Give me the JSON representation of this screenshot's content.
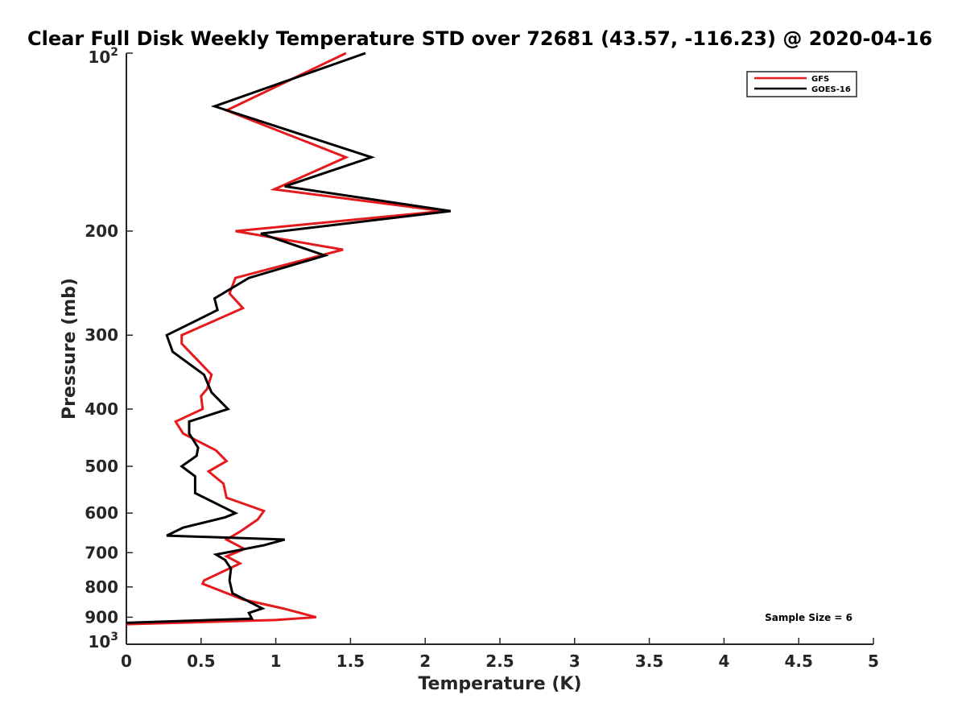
{
  "chart_data": {
    "type": "line",
    "title": "Clear Full Disk Weekly Temperature STD over 72681 (43.57, -116.23) @ 2020-04-16",
    "xlabel": "Temperature (K)",
    "ylabel": "Pressure (mb)",
    "xlim": [
      0,
      5
    ],
    "ylim": [
      100,
      1000
    ],
    "y_scale": "log",
    "y_reversed": true,
    "x_ticks": [
      0,
      0.5,
      1,
      1.5,
      2,
      2.5,
      3,
      3.5,
      4,
      4.5,
      5
    ],
    "x_tick_labels": [
      "0",
      "0.5",
      "1",
      "1.5",
      "2",
      "2.5",
      "3",
      "3.5",
      "4",
      "4.5",
      "5"
    ],
    "y_ticks": [
      100,
      200,
      300,
      400,
      500,
      600,
      700,
      800,
      900,
      1000
    ],
    "y_tick_labels": [
      {
        "base": "10",
        "exp": "2"
      },
      {
        "base": "200",
        "exp": ""
      },
      {
        "base": "300",
        "exp": ""
      },
      {
        "base": "400",
        "exp": ""
      },
      {
        "base": "500",
        "exp": ""
      },
      {
        "base": "600",
        "exp": ""
      },
      {
        "base": "700",
        "exp": ""
      },
      {
        "base": "800",
        "exp": ""
      },
      {
        "base": "900",
        "exp": ""
      },
      {
        "base": "10",
        "exp": "3"
      }
    ],
    "grid": false,
    "legend_position": "top-right",
    "series": [
      {
        "name": "GFS",
        "color": "#e41a1c",
        "points": [
          [
            1.47,
            100
          ],
          [
            0.67,
            125
          ],
          [
            1.47,
            150
          ],
          [
            0.99,
            170
          ],
          [
            2.12,
            185
          ],
          [
            0.73,
            200
          ],
          [
            1.45,
            215
          ],
          [
            0.73,
            240
          ],
          [
            0.69,
            255
          ],
          [
            0.78,
            270
          ],
          [
            0.37,
            300
          ],
          [
            0.37,
            310
          ],
          [
            0.57,
            350
          ],
          [
            0.54,
            370
          ],
          [
            0.5,
            380
          ],
          [
            0.51,
            400
          ],
          [
            0.33,
            420
          ],
          [
            0.38,
            440
          ],
          [
            0.6,
            470
          ],
          [
            0.67,
            490
          ],
          [
            0.55,
            510
          ],
          [
            0.65,
            535
          ],
          [
            0.67,
            565
          ],
          [
            0.92,
            595
          ],
          [
            0.88,
            615
          ],
          [
            0.76,
            645
          ],
          [
            0.67,
            665
          ],
          [
            0.79,
            690
          ],
          [
            0.67,
            710
          ],
          [
            0.76,
            730
          ],
          [
            0.52,
            780
          ],
          [
            0.51,
            790
          ],
          [
            0.78,
            840
          ],
          [
            1.05,
            870
          ],
          [
            1.27,
            900
          ],
          [
            1.0,
            910
          ],
          [
            0.0,
            925
          ]
        ]
      },
      {
        "name": "GOES-16",
        "color": "#000000",
        "points": [
          [
            1.6,
            100
          ],
          [
            0.59,
            123
          ],
          [
            1.64,
            150
          ],
          [
            1.06,
            168
          ],
          [
            2.17,
            185
          ],
          [
            0.9,
            202
          ],
          [
            1.33,
            220
          ],
          [
            0.82,
            240
          ],
          [
            0.59,
            260
          ],
          [
            0.61,
            272
          ],
          [
            0.27,
            300
          ],
          [
            0.31,
            320
          ],
          [
            0.52,
            350
          ],
          [
            0.57,
            375
          ],
          [
            0.68,
            400
          ],
          [
            0.42,
            420
          ],
          [
            0.42,
            440
          ],
          [
            0.48,
            465
          ],
          [
            0.47,
            480
          ],
          [
            0.37,
            500
          ],
          [
            0.46,
            520
          ],
          [
            0.46,
            555
          ],
          [
            0.73,
            600
          ],
          [
            0.66,
            610
          ],
          [
            0.38,
            635
          ],
          [
            0.27,
            655
          ],
          [
            1.06,
            665
          ],
          [
            0.92,
            680
          ],
          [
            0.6,
            705
          ],
          [
            0.66,
            720
          ],
          [
            0.7,
            745
          ],
          [
            0.69,
            780
          ],
          [
            0.71,
            820
          ],
          [
            0.91,
            870
          ],
          [
            0.82,
            885
          ],
          [
            0.84,
            905
          ],
          [
            0.0,
            920
          ]
        ]
      }
    ],
    "annotations": [
      {
        "text": "Sample Size = 6"
      }
    ]
  }
}
